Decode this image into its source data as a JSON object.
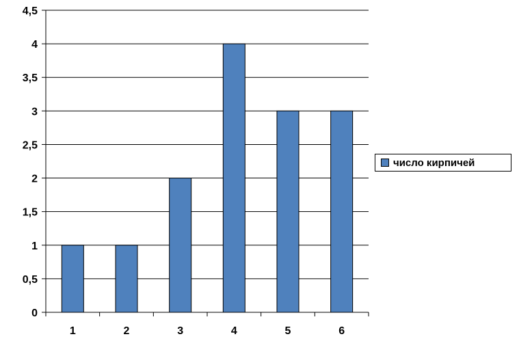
{
  "chart_data": {
    "type": "bar",
    "categories": [
      "1",
      "2",
      "3",
      "4",
      "5",
      "6"
    ],
    "series": [
      {
        "name": "число кирпичей",
        "values": [
          1,
          1,
          2,
          4,
          3,
          3
        ]
      }
    ],
    "ylim": [
      0,
      4.5
    ],
    "yticks": [
      "0",
      "0,5",
      "1",
      "1,5",
      "2",
      "2,5",
      "3",
      "3,5",
      "4",
      "4,5"
    ],
    "grid": true,
    "legend_position": "right",
    "colors": {
      "bar": "#4f81bd",
      "bar_stroke": "#000000",
      "grid": "#000000"
    }
  }
}
